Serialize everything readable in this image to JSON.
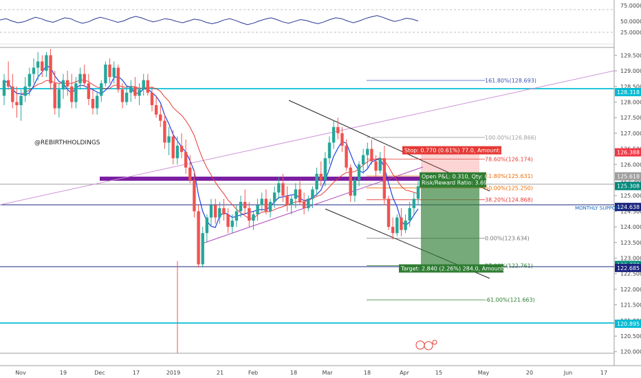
{
  "watermark": "@REBIRTHHOLDINGS",
  "chart_data": {
    "type": "candlestick",
    "y_range": [
      119.95,
      129.75
    ],
    "price_ticks": [
      "129.500",
      "129.000",
      "128.500",
      "128.000",
      "127.500",
      "127.000",
      "126.500",
      "126.000",
      "125.500",
      "125.000",
      "124.500",
      "124.000",
      "123.500",
      "123.000",
      "122.500",
      "122.000",
      "121.500",
      "121.000",
      "120.500",
      "120.000"
    ],
    "oscillator_ticks": [
      "75.0000",
      "50.0000",
      "25.0000"
    ],
    "x_labels": [
      "Nov",
      "19",
      "Dec",
      "17",
      "2019",
      "21",
      "Feb",
      "18",
      "Mar",
      "18",
      "Apr",
      "15",
      "May",
      "20",
      "Jun",
      "17"
    ],
    "price_tags": [
      {
        "value": 128.318,
        "text": "128.318",
        "color": "#00bcd4"
      },
      {
        "value": 126.388,
        "text": "126.388",
        "color": "#f23645"
      },
      {
        "value": 125.618,
        "text": "125.618",
        "color": "#9e9e9e"
      },
      {
        "value": 125.308,
        "text": "125.308",
        "color": "#00897b"
      },
      {
        "value": 124.638,
        "text": "124.638",
        "color": "#1a237e"
      },
      {
        "value": 122.778,
        "text": "122.778",
        "color": "#00897b"
      },
      {
        "value": 122.685,
        "text": "122.685",
        "color": "#1a237e"
      },
      {
        "value": 120.895,
        "text": "120.895",
        "color": "#00bcd4"
      }
    ],
    "fib_levels": [
      {
        "value": 128.693,
        "text": "161.80%(128.693)",
        "color": "#3f51b5"
      },
      {
        "value": 126.866,
        "text": "100.00%(126.866)",
        "color": "#9e9e9e"
      },
      {
        "value": 126.174,
        "text": "78.60%(126.174)",
        "color": "#e53935"
      },
      {
        "value": 125.631,
        "text": "61.80%(125.631)",
        "color": "#ef6c00"
      },
      {
        "value": 125.25,
        "text": "50.00%(125.250)",
        "color": "#ef6c00"
      },
      {
        "value": 124.868,
        "text": "38.20%(124.868)",
        "color": "#e53935"
      },
      {
        "value": 123.634,
        "text": "0.00%(123.634)",
        "color": "#757575"
      },
      {
        "value": 122.761,
        "text": "27.00%(122.761)",
        "color": "#2e7d32"
      },
      {
        "value": 121.663,
        "text": "-61.00%(121.663)",
        "color": "#2e7d32"
      }
    ],
    "monthly_support": {
      "value": 124.638,
      "text": "MONTHLY SUPPORT"
    },
    "position": {
      "entry": 125.308,
      "stop_value": 126.388,
      "target_value": 122.778,
      "stop_label": "Stop: 0.770 (0.61%) 77.0, Amount: 1",
      "target_label": "Target: 2.840 (2.26%) 284.0, Amount: 1",
      "pnl_line1": "Open P&L: 0.310, Qty: 0",
      "pnl_line2": "Risk/Reward Ratio: 3.69"
    },
    "ohlc": [
      [
        128.2,
        128.9,
        127.9,
        128.7
      ],
      [
        128.7,
        129.3,
        128.4,
        128.5
      ],
      [
        128.5,
        128.9,
        127.8,
        128.0
      ],
      [
        128.0,
        128.5,
        127.5,
        127.9
      ],
      [
        127.9,
        128.4,
        127.4,
        128.2
      ],
      [
        128.2,
        128.8,
        128.0,
        128.5
      ],
      [
        128.5,
        129.1,
        128.2,
        128.9
      ],
      [
        128.9,
        129.4,
        128.6,
        129.1
      ],
      [
        129.1,
        129.6,
        128.7,
        129.3
      ],
      [
        129.3,
        129.5,
        128.8,
        129.0
      ],
      [
        129.0,
        129.6,
        128.8,
        129.5
      ],
      [
        129.5,
        129.7,
        128.4,
        128.6
      ],
      [
        128.6,
        129.0,
        127.6,
        127.8
      ],
      [
        127.8,
        128.6,
        127.5,
        128.4
      ],
      [
        128.4,
        128.9,
        128.1,
        128.7
      ],
      [
        128.7,
        129.0,
        128.2,
        128.5
      ],
      [
        128.5,
        128.9,
        127.8,
        128.0
      ],
      [
        128.0,
        128.8,
        127.8,
        128.6
      ],
      [
        128.6,
        129.1,
        128.4,
        128.9
      ],
      [
        128.9,
        129.2,
        128.5,
        128.6
      ],
      [
        128.6,
        128.9,
        127.9,
        128.1
      ],
      [
        128.1,
        128.4,
        127.6,
        127.8
      ],
      [
        127.8,
        128.3,
        127.6,
        128.2
      ],
      [
        128.2,
        128.7,
        128.0,
        128.6
      ],
      [
        128.6,
        129.3,
        128.5,
        129.2
      ],
      [
        129.2,
        129.4,
        128.6,
        128.8
      ],
      [
        128.8,
        129.3,
        128.6,
        129.1
      ],
      [
        129.1,
        129.2,
        128.3,
        128.4
      ],
      [
        128.4,
        128.6,
        127.8,
        128.0
      ],
      [
        128.0,
        128.5,
        127.9,
        128.3
      ],
      [
        128.3,
        128.7,
        128.0,
        128.5
      ],
      [
        128.5,
        128.8,
        128.1,
        128.2
      ],
      [
        128.2,
        128.6,
        127.9,
        128.4
      ],
      [
        128.4,
        128.9,
        128.2,
        128.7
      ],
      [
        128.7,
        128.9,
        128.2,
        128.3
      ],
      [
        128.3,
        128.5,
        127.7,
        127.9
      ],
      [
        127.9,
        128.2,
        127.5,
        127.6
      ],
      [
        127.6,
        127.9,
        127.2,
        127.4
      ],
      [
        127.4,
        127.6,
        126.5,
        126.7
      ],
      [
        126.7,
        127.2,
        126.3,
        126.9
      ],
      [
        126.9,
        127.1,
        126.0,
        126.2
      ],
      [
        126.2,
        126.9,
        126.0,
        126.6
      ],
      [
        126.6,
        127.0,
        126.2,
        126.4
      ],
      [
        126.4,
        126.8,
        125.7,
        125.9
      ],
      [
        125.9,
        126.3,
        125.4,
        125.5
      ],
      [
        125.5,
        125.8,
        124.3,
        124.5
      ],
      [
        124.5,
        124.7,
        122.7,
        122.8
      ],
      [
        122.8,
        124.0,
        122.7,
        123.8
      ],
      [
        123.8,
        124.4,
        123.5,
        124.3
      ],
      [
        124.3,
        124.9,
        124.0,
        124.7
      ],
      [
        124.7,
        124.9,
        124.1,
        124.3
      ],
      [
        124.3,
        124.8,
        124.1,
        124.6
      ],
      [
        124.6,
        124.9,
        124.2,
        124.4
      ],
      [
        124.4,
        124.6,
        123.8,
        124.0
      ],
      [
        124.0,
        124.4,
        123.8,
        124.2
      ],
      [
        124.2,
        124.7,
        124.0,
        124.5
      ],
      [
        124.5,
        125.0,
        124.3,
        124.8
      ],
      [
        124.8,
        125.2,
        124.4,
        124.6
      ],
      [
        124.6,
        124.8,
        124.0,
        124.2
      ],
      [
        124.2,
        124.5,
        123.9,
        124.4
      ],
      [
        124.4,
        124.9,
        124.2,
        124.7
      ],
      [
        124.7,
        125.1,
        124.5,
        124.9
      ],
      [
        124.9,
        125.2,
        124.4,
        124.5
      ],
      [
        124.5,
        124.9,
        124.3,
        124.8
      ],
      [
        124.8,
        125.3,
        124.6,
        125.1
      ],
      [
        125.1,
        125.6,
        124.9,
        125.4
      ],
      [
        125.4,
        125.7,
        124.8,
        125.0
      ],
      [
        125.0,
        125.3,
        124.5,
        124.7
      ],
      [
        124.7,
        125.0,
        124.4,
        124.9
      ],
      [
        124.9,
        125.4,
        124.6,
        125.2
      ],
      [
        125.2,
        125.5,
        124.7,
        124.8
      ],
      [
        124.8,
        125.1,
        124.4,
        124.6
      ],
      [
        124.6,
        125.0,
        124.5,
        124.9
      ],
      [
        124.9,
        125.3,
        124.6,
        125.2
      ],
      [
        125.2,
        125.9,
        125.0,
        125.7
      ],
      [
        125.7,
        126.1,
        125.3,
        125.5
      ],
      [
        125.5,
        126.4,
        125.3,
        126.2
      ],
      [
        126.2,
        126.9,
        126.0,
        126.7
      ],
      [
        126.7,
        127.4,
        126.5,
        127.2
      ],
      [
        127.2,
        127.5,
        126.8,
        127.0
      ],
      [
        127.0,
        127.2,
        126.4,
        126.6
      ],
      [
        126.6,
        126.8,
        125.8,
        125.9
      ],
      [
        125.9,
        126.0,
        124.8,
        125.0
      ],
      [
        125.0,
        125.6,
        124.8,
        125.5
      ],
      [
        125.5,
        126.1,
        125.3,
        126.0
      ],
      [
        126.0,
        126.5,
        125.7,
        126.3
      ],
      [
        126.3,
        126.7,
        125.9,
        126.5
      ],
      [
        126.5,
        126.8,
        126.0,
        126.1
      ],
      [
        126.1,
        126.3,
        125.6,
        125.8
      ],
      [
        125.8,
        126.4,
        125.7,
        126.2
      ],
      [
        126.2,
        126.6,
        124.7,
        124.9
      ],
      [
        124.9,
        125.0,
        123.9,
        124.0
      ],
      [
        124.0,
        124.3,
        123.6,
        123.8
      ],
      [
        123.8,
        124.4,
        123.7,
        124.3
      ],
      [
        124.3,
        124.6,
        123.7,
        123.9
      ],
      [
        123.9,
        124.4,
        123.8,
        124.2
      ],
      [
        124.2,
        124.8,
        124.0,
        124.6
      ],
      [
        124.6,
        125.1,
        124.4,
        124.9
      ],
      [
        124.9,
        125.5,
        124.7,
        125.3
      ]
    ]
  },
  "oscillator": [
    52,
    55,
    50,
    46,
    48,
    53,
    58,
    55,
    50,
    47,
    52,
    57,
    55,
    49,
    45,
    48,
    54,
    58,
    55,
    51,
    47,
    50,
    56,
    60,
    57,
    52,
    48,
    51,
    55,
    53,
    49,
    46,
    50,
    54,
    52,
    47,
    44,
    47,
    52,
    55,
    51,
    46,
    42,
    45,
    50,
    54,
    57,
    53,
    48,
    45,
    49,
    53,
    51,
    47,
    44,
    48,
    53,
    57,
    55,
    50,
    46,
    50,
    55,
    59,
    62,
    58,
    53,
    49,
    52,
    56,
    54,
    50
  ]
}
